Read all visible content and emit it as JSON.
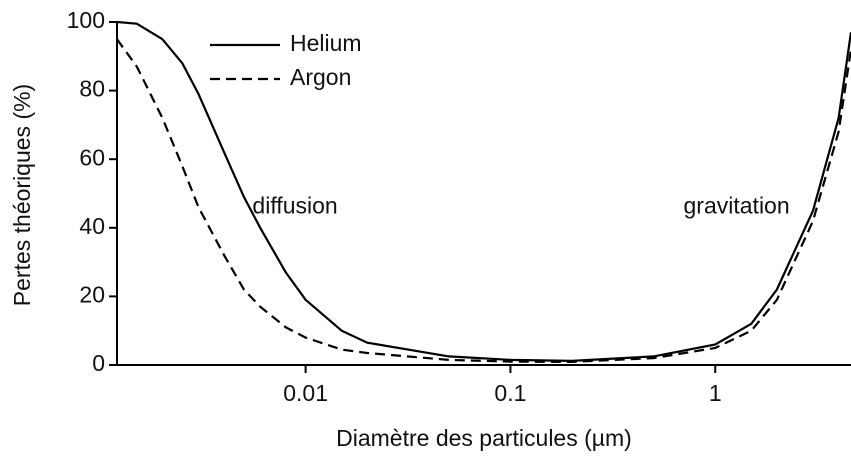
{
  "chart_data": {
    "type": "line",
    "xlabel": "Diamètre des particules (µm)",
    "ylabel": "Pertes théoriques (%)",
    "x": [
      0.0012,
      0.0015,
      0.002,
      0.0025,
      0.003,
      0.004,
      0.005,
      0.006,
      0.008,
      0.01,
      0.015,
      0.02,
      0.05,
      0.1,
      0.2,
      0.5,
      1,
      1.5,
      2,
      3,
      4,
      4.6
    ],
    "series": [
      {
        "name": "Helium",
        "color": "#000000",
        "linestyle": "solid",
        "values": [
          100,
          99.5,
          95,
          88,
          79,
          62,
          49,
          40,
          27,
          19,
          10,
          6.5,
          2.5,
          1.5,
          1.2,
          2.5,
          6,
          12,
          22,
          45,
          72,
          97
        ]
      },
      {
        "name": "Argon",
        "color": "#000000",
        "linestyle": "dashed",
        "values": [
          95,
          87,
          72,
          58,
          46,
          32,
          22,
          17,
          11,
          8,
          4.5,
          3.5,
          1.5,
          1,
          0.9,
          2,
          5,
          10,
          19,
          42,
          68,
          92
        ]
      }
    ],
    "annotations": [
      {
        "text": "diffusion",
        "x": 0.0055,
        "y": 46
      },
      {
        "text": "gravitation",
        "x": 0.7,
        "y": 46
      }
    ],
    "xscale": "log",
    "xlim": [
      0.0012,
      4.6
    ],
    "xticks": [
      0.01,
      0.1,
      1
    ],
    "ylim": [
      0,
      100
    ],
    "yticks": [
      0,
      20,
      40,
      60,
      80,
      100
    ],
    "grid": false,
    "legend": "upper left"
  }
}
